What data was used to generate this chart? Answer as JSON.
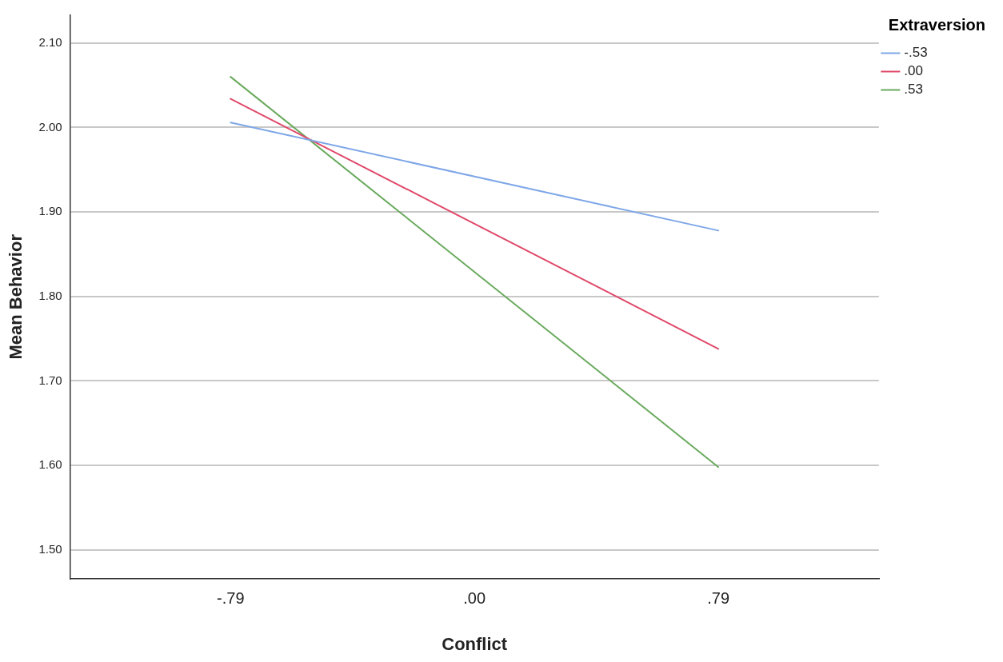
{
  "chart_data": {
    "type": "line",
    "xlabel": "Conflict",
    "ylabel": "Mean Behavior",
    "legend_title": "Extraversion",
    "legend": "top right",
    "grid": "y",
    "marker": "none",
    "line_style": "solid",
    "x": [
      -0.79,
      0.79
    ],
    "xlim": [
      -1.31,
      1.31
    ],
    "xticks": [
      {
        "value": -0.79,
        "label": "-.79"
      },
      {
        "value": 0,
        "label": ".00"
      },
      {
        "value": 0.79,
        "label": ".79"
      }
    ],
    "ylim": [
      1.466,
      2.133
    ],
    "yticks": [
      {
        "value": 1.5,
        "label": "1.50"
      },
      {
        "value": 1.6,
        "label": "1.60"
      },
      {
        "value": 1.7,
        "label": "1.70"
      },
      {
        "value": 1.8,
        "label": "1.80"
      },
      {
        "value": 1.9,
        "label": "1.90"
      },
      {
        "value": 2.0,
        "label": "2.00"
      },
      {
        "value": 2.1,
        "label": "2.10"
      }
    ],
    "series": [
      {
        "name": "-.53",
        "color": "#7fa7e8",
        "values": [
          2.006,
          1.878
        ]
      },
      {
        "name": ".00",
        "color": "#e04a6a",
        "values": [
          2.034,
          1.738
        ]
      },
      {
        "name": ".53",
        "color": "#6aaa5e",
        "values": [
          2.06,
          1.598
        ]
      }
    ]
  }
}
